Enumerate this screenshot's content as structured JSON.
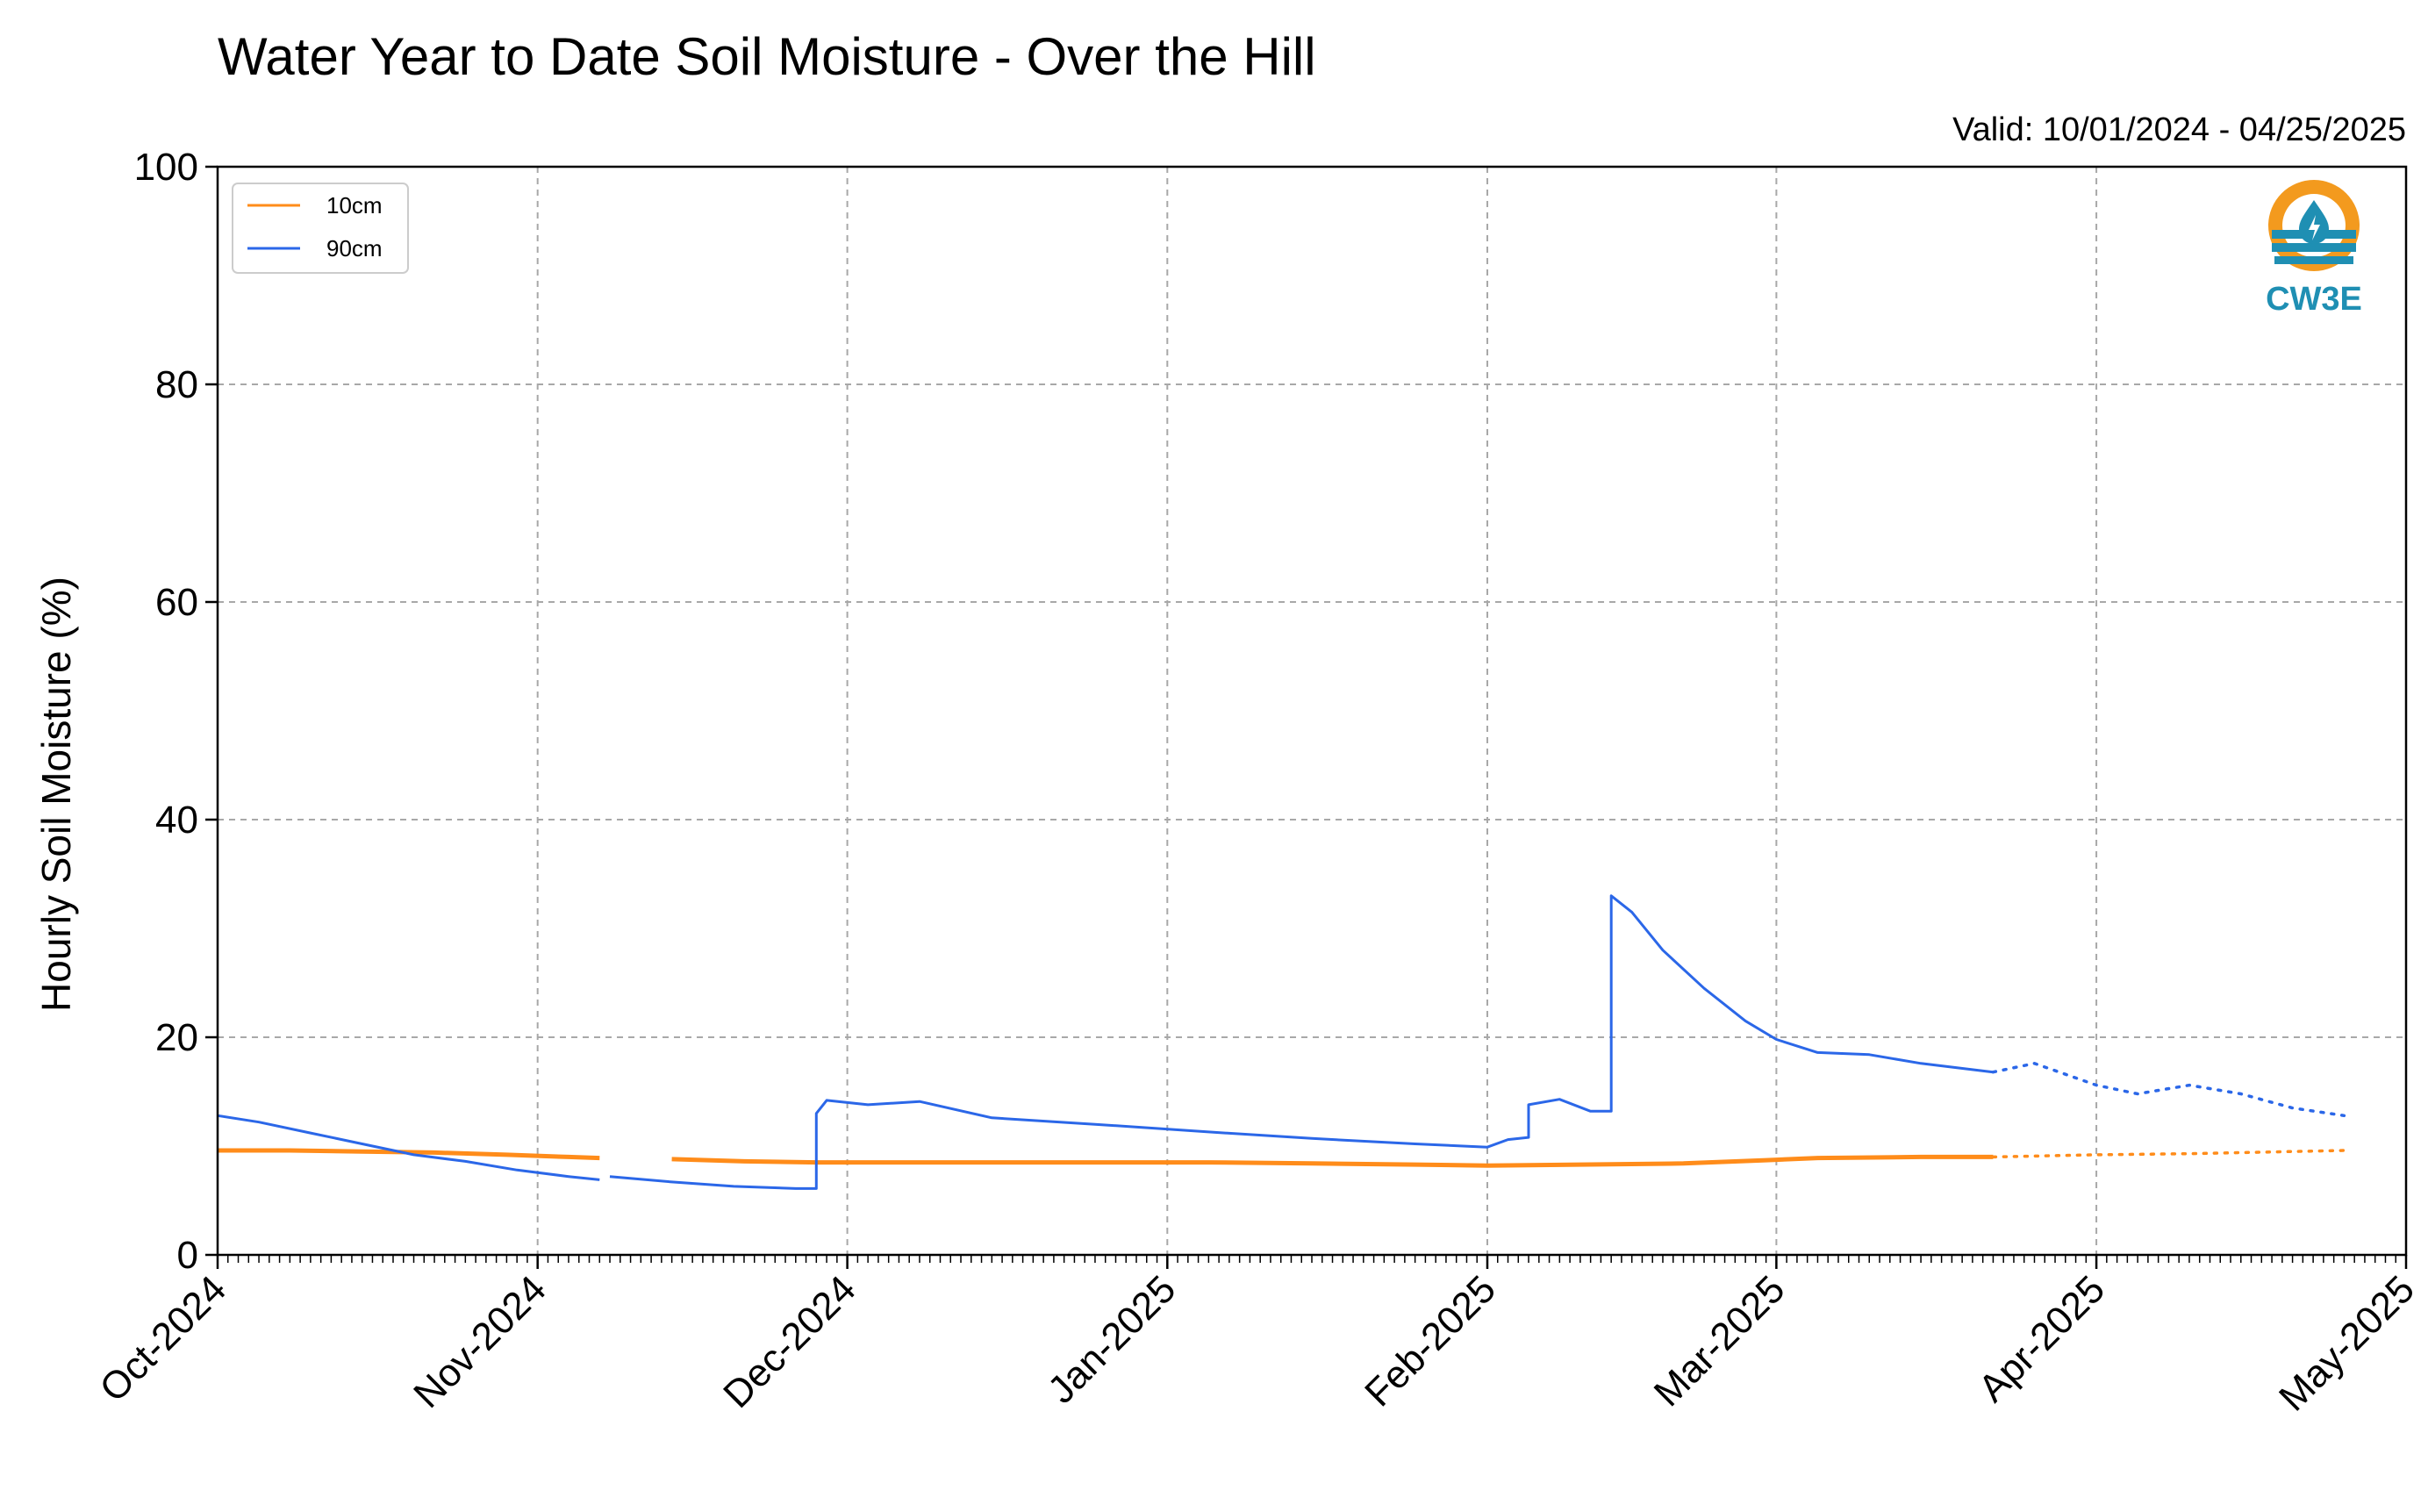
{
  "chart_data": {
    "type": "line",
    "title": "Water Year to Date Soil Moisture - Over the Hill",
    "subtitle": "Valid: 10/01/2024 - 04/25/2025",
    "xlabel": "",
    "ylabel": "Hourly Soil Moisture (%)",
    "xlim": [
      "2024-10-01",
      "2025-05-01"
    ],
    "ylim": [
      0,
      100
    ],
    "yticks": [
      0,
      20,
      40,
      60,
      80,
      100
    ],
    "xticks": [
      {
        "date": "2024-10-01",
        "label": "Oct-2024"
      },
      {
        "date": "2024-11-01",
        "label": "Nov-2024"
      },
      {
        "date": "2024-12-01",
        "label": "Dec-2024"
      },
      {
        "date": "2025-01-01",
        "label": "Jan-2025"
      },
      {
        "date": "2025-02-01",
        "label": "Feb-2025"
      },
      {
        "date": "2025-03-01",
        "label": "Mar-2025"
      },
      {
        "date": "2025-04-01",
        "label": "Apr-2025"
      },
      {
        "date": "2025-05-01",
        "label": "May-2025"
      }
    ],
    "grid": true,
    "legend_position": "top-left",
    "series": [
      {
        "name": "10cm",
        "color": "#ff8c1a",
        "points": [
          [
            "2024-10-01",
            9.6
          ],
          [
            "2024-10-08",
            9.6
          ],
          [
            "2024-10-15",
            9.5
          ],
          [
            "2024-10-22",
            9.4
          ],
          [
            "2024-10-29",
            9.2
          ],
          [
            "2024-11-04",
            9.0
          ],
          [
            "2024-11-07",
            8.9
          ],
          [
            "2024-11-14",
            8.8
          ],
          [
            "2024-11-21",
            8.6
          ],
          [
            "2024-11-28",
            8.5
          ],
          [
            "2024-12-05",
            8.5
          ],
          [
            "2024-12-15",
            8.5
          ],
          [
            "2024-12-25",
            8.5
          ],
          [
            "2025-01-05",
            8.5
          ],
          [
            "2025-01-15",
            8.4
          ],
          [
            "2025-01-25",
            8.3
          ],
          [
            "2025-02-01",
            8.2
          ],
          [
            "2025-02-10",
            8.3
          ],
          [
            "2025-02-20",
            8.4
          ],
          [
            "2025-02-28",
            8.7
          ],
          [
            "2025-03-05",
            8.9
          ],
          [
            "2025-03-15",
            9.0
          ],
          [
            "2025-03-22",
            9.0
          ],
          [
            "2025-04-01",
            9.2
          ],
          [
            "2025-04-10",
            9.3
          ],
          [
            "2025-04-20",
            9.5
          ],
          [
            "2025-04-25",
            9.6
          ]
        ],
        "missing_from": "2025-03-22",
        "segments": [
          [
            "2024-10-01",
            "2024-11-07"
          ],
          [
            "2024-11-08",
            "2025-03-22"
          ]
        ],
        "dotted_range": [
          "2025-03-22",
          "2025-04-25"
        ]
      },
      {
        "name": "90cm",
        "color": "#2b67e8",
        "points": [
          [
            "2024-10-01",
            12.8
          ],
          [
            "2024-10-05",
            12.2
          ],
          [
            "2024-10-10",
            11.2
          ],
          [
            "2024-10-15",
            10.2
          ],
          [
            "2024-10-20",
            9.2
          ],
          [
            "2024-10-25",
            8.6
          ],
          [
            "2024-10-30",
            7.8
          ],
          [
            "2024-11-04",
            7.2
          ],
          [
            "2024-11-07",
            6.9
          ],
          [
            "2024-11-08",
            7.2
          ],
          [
            "2024-11-14",
            6.7
          ],
          [
            "2024-11-20",
            6.3
          ],
          [
            "2024-11-26",
            6.1
          ],
          [
            "2024-11-28",
            6.1
          ],
          [
            "2024-11-28",
            13.0
          ],
          [
            "2024-11-29",
            14.2
          ],
          [
            "2024-12-03",
            13.8
          ],
          [
            "2024-12-08",
            14.1
          ],
          [
            "2024-12-15",
            12.6
          ],
          [
            "2024-12-25",
            12.0
          ],
          [
            "2025-01-05",
            11.3
          ],
          [
            "2025-01-15",
            10.7
          ],
          [
            "2025-01-25",
            10.2
          ],
          [
            "2025-02-01",
            9.9
          ],
          [
            "2025-02-03",
            10.6
          ],
          [
            "2025-02-05",
            10.8
          ],
          [
            "2025-02-05",
            13.8
          ],
          [
            "2025-02-08",
            14.3
          ],
          [
            "2025-02-11",
            13.2
          ],
          [
            "2025-02-13",
            13.2
          ],
          [
            "2025-02-13",
            33.0
          ],
          [
            "2025-02-15",
            31.5
          ],
          [
            "2025-02-18",
            28.0
          ],
          [
            "2025-02-22",
            24.5
          ],
          [
            "2025-02-26",
            21.5
          ],
          [
            "2025-03-01",
            19.8
          ],
          [
            "2025-03-05",
            18.6
          ],
          [
            "2025-03-10",
            18.4
          ],
          [
            "2025-03-15",
            17.6
          ],
          [
            "2025-03-22",
            16.8
          ],
          [
            "2025-03-26",
            17.6
          ],
          [
            "2025-04-01",
            15.6
          ],
          [
            "2025-04-05",
            14.8
          ],
          [
            "2025-04-10",
            15.6
          ],
          [
            "2025-04-15",
            14.8
          ],
          [
            "2025-04-20",
            13.5
          ],
          [
            "2025-04-25",
            12.8
          ]
        ],
        "segments": [
          [
            "2024-10-01",
            "2024-11-07"
          ],
          [
            "2024-11-08",
            "2025-03-22"
          ]
        ],
        "dotted_range": [
          "2025-03-22",
          "2025-04-25"
        ]
      }
    ]
  },
  "logo": {
    "text": "CW3E",
    "icon": "water-drop-logo-icon",
    "colors": {
      "orange": "#f39a1e",
      "teal": "#1f8fb3"
    }
  }
}
